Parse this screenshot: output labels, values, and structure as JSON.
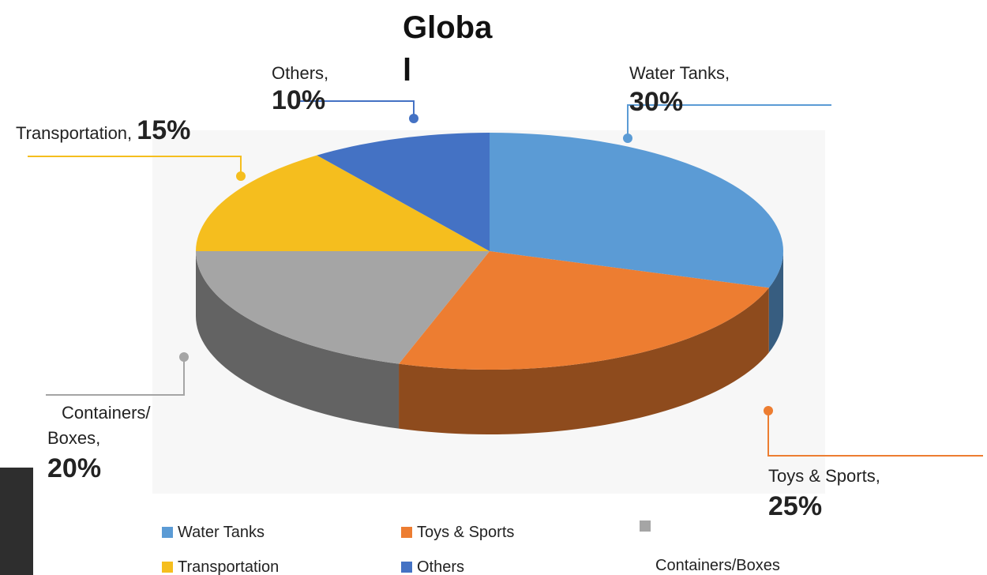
{
  "chart_data": {
    "type": "pie",
    "title": "Global",
    "categories": [
      "Water Tanks",
      "Toys & Sports",
      "Containers/Boxes",
      "Transportation",
      "Others"
    ],
    "values": [
      30,
      25,
      20,
      15,
      10
    ],
    "value_labels": [
      "30%",
      "25%",
      "20%",
      "15%",
      "10%"
    ],
    "colors": [
      "#5b9bd5",
      "#ed7d31",
      "#a5a5a5",
      "#f5be1e",
      "#4472c4"
    ],
    "label_separator": ",",
    "legend": "bottom"
  }
}
